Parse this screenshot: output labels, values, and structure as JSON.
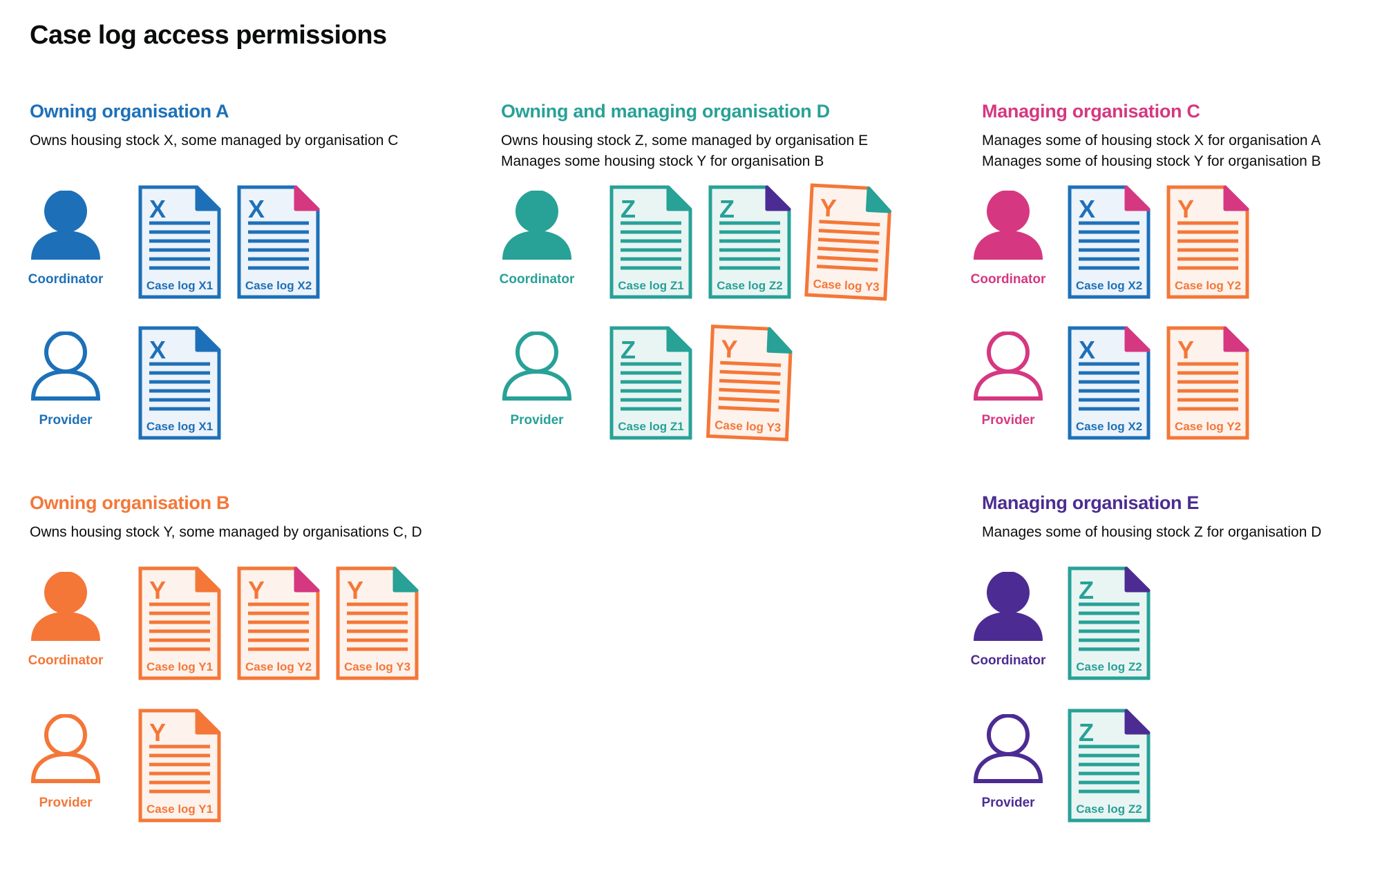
{
  "title": "Case log access permissions",
  "colors": {
    "blue": "#1d70b8",
    "teal": "#28a197",
    "pink": "#d53880",
    "orange": "#f47738",
    "purple": "#4c2c92",
    "text": "#0b0c0c",
    "blue_tint": "#edf3fa",
    "teal_tint": "#e9f5f3",
    "orange_tint": "#fdf2ec"
  },
  "sections": [
    {
      "id": "org-a",
      "title": "Owning organisation A",
      "color": "blue",
      "description_lines": [
        "Owns housing stock X, some managed by organisation C"
      ],
      "rows": [
        {
          "role": "Coordinator",
          "person_style": "filled",
          "docs": [
            {
              "letter": "X",
              "label": "Case log X1",
              "doc_color": "blue",
              "fold_color": "blue",
              "tilt": 0
            },
            {
              "letter": "X",
              "label": "Case log X2",
              "doc_color": "blue",
              "fold_color": "pink",
              "tilt": 0
            }
          ]
        },
        {
          "role": "Provider",
          "person_style": "outline",
          "docs": [
            {
              "letter": "X",
              "label": "Case log X1",
              "doc_color": "blue",
              "fold_color": "blue",
              "tilt": 0
            }
          ]
        }
      ]
    },
    {
      "id": "org-d",
      "title": "Owning and managing organisation D",
      "color": "teal",
      "description_lines": [
        "Owns housing stock Z, some managed by organisation E",
        "Manages some housing stock Y for organisation B"
      ],
      "rows": [
        {
          "role": "Coordinator",
          "person_style": "filled",
          "docs": [
            {
              "letter": "Z",
              "label": "Case log Z1",
              "doc_color": "teal",
              "fold_color": "teal",
              "tilt": 0
            },
            {
              "letter": "Z",
              "label": "Case log Z2",
              "doc_color": "teal",
              "fold_color": "purple",
              "tilt": 0
            },
            {
              "letter": "Y",
              "label": "Case log Y3",
              "doc_color": "orange",
              "fold_color": "teal",
              "tilt": 3
            }
          ]
        },
        {
          "role": "Provider",
          "person_style": "outline",
          "docs": [
            {
              "letter": "Z",
              "label": "Case log Z1",
              "doc_color": "teal",
              "fold_color": "teal",
              "tilt": 0
            },
            {
              "letter": "Y",
              "label": "Case log Y3",
              "doc_color": "orange",
              "fold_color": "teal",
              "tilt": 2.5
            }
          ]
        }
      ]
    },
    {
      "id": "org-c",
      "title": "Managing organisation C",
      "color": "pink",
      "description_lines": [
        "Manages some of housing stock X for organisation A",
        "Manages some of housing stock Y for organisation B"
      ],
      "rows": [
        {
          "role": "Coordinator",
          "person_style": "filled",
          "docs": [
            {
              "letter": "X",
              "label": "Case log X2",
              "doc_color": "blue",
              "fold_color": "pink",
              "tilt": 0
            },
            {
              "letter": "Y",
              "label": "Case log Y2",
              "doc_color": "orange",
              "fold_color": "pink",
              "tilt": 0
            }
          ]
        },
        {
          "role": "Provider",
          "person_style": "outline",
          "docs": [
            {
              "letter": "X",
              "label": "Case log X2",
              "doc_color": "blue",
              "fold_color": "pink",
              "tilt": 0
            },
            {
              "letter": "Y",
              "label": "Case log Y2",
              "doc_color": "orange",
              "fold_color": "pink",
              "tilt": 0
            }
          ]
        }
      ]
    },
    {
      "id": "org-b",
      "title": "Owning organisation B",
      "color": "orange",
      "description_lines": [
        "Owns housing stock Y, some managed by organisations C, D"
      ],
      "rows": [
        {
          "role": "Coordinator",
          "person_style": "filled",
          "docs": [
            {
              "letter": "Y",
              "label": "Case log Y1",
              "doc_color": "orange",
              "fold_color": "orange",
              "tilt": 0
            },
            {
              "letter": "Y",
              "label": "Case log Y2",
              "doc_color": "orange",
              "fold_color": "pink",
              "tilt": 0
            },
            {
              "letter": "Y",
              "label": "Case log Y3",
              "doc_color": "orange",
              "fold_color": "teal",
              "tilt": 0
            }
          ]
        },
        {
          "role": "Provider",
          "person_style": "outline",
          "docs": [
            {
              "letter": "Y",
              "label": "Case log Y1",
              "doc_color": "orange",
              "fold_color": "orange",
              "tilt": 0
            }
          ]
        }
      ]
    },
    {
      "id": "org-e",
      "title": "Managing organisation E",
      "color": "purple",
      "description_lines": [
        "Manages some of housing stock Z for organisation D"
      ],
      "rows": [
        {
          "role": "Coordinator",
          "person_style": "filled",
          "docs": [
            {
              "letter": "Z",
              "label": "Case log Z2",
              "doc_color": "teal",
              "fold_color": "purple",
              "tilt": 0
            }
          ]
        },
        {
          "role": "Provider",
          "person_style": "outline",
          "docs": [
            {
              "letter": "Z",
              "label": "Case log Z2",
              "doc_color": "teal",
              "fold_color": "purple",
              "tilt": 0
            }
          ]
        }
      ]
    }
  ]
}
